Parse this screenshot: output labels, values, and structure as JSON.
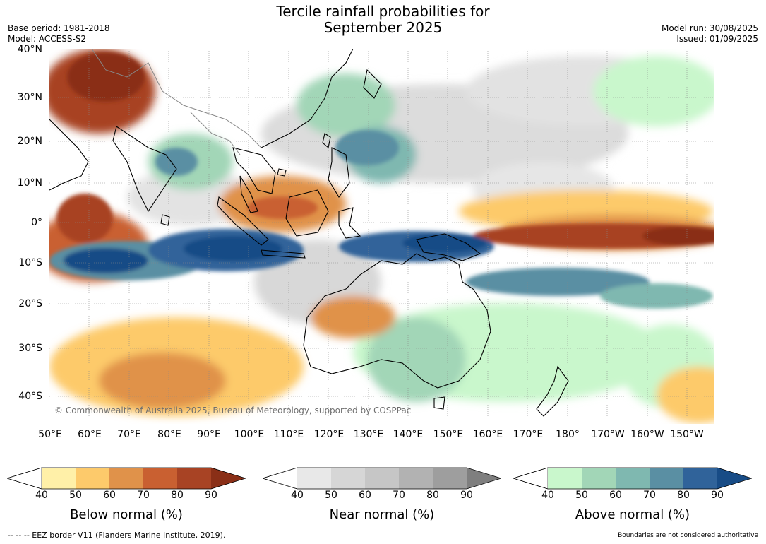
{
  "title": {
    "line1": "Tercile rainfall probabilities for",
    "line2": "September 2025"
  },
  "meta": {
    "base_period": "Base period: 1981-2018",
    "model": "Model: ACCESS-S2",
    "model_run": "Model run: 30/08/2025",
    "issued": "Issued: 01/09/2025"
  },
  "map": {
    "lat_labels": [
      "40°N",
      "30°N",
      "20°N",
      "10°N",
      "0°",
      "10°S",
      "20°S",
      "30°S",
      "40°S"
    ],
    "lon_labels": [
      "50°E",
      "60°E",
      "70°E",
      "80°E",
      "90°E",
      "100°E",
      "110°E",
      "120°E",
      "130°E",
      "140°E",
      "150°E",
      "160°E",
      "170°E",
      "180°",
      "170°W",
      "160°W",
      "150°W"
    ],
    "copyright": "© Commonwealth of Australia 2025, Bureau of Meteorology, supported by COSPPac"
  },
  "colorbars": [
    {
      "title": "Below normal (%)",
      "ticks": [
        "40",
        "50",
        "60",
        "70",
        "80",
        "90"
      ],
      "colors": [
        "#fff0a8",
        "#fdca6b",
        "#e0924a",
        "#c96031",
        "#a84324",
        "#8a2f17"
      ]
    },
    {
      "title": "Near normal (%)",
      "ticks": [
        "40",
        "50",
        "60",
        "70",
        "80",
        "90"
      ],
      "colors": [
        "#e8e8e8",
        "#d6d6d6",
        "#c6c6c6",
        "#b2b2b2",
        "#9e9e9e",
        "#7f7f7f"
      ]
    },
    {
      "title": "Above normal (%)",
      "ticks": [
        "40",
        "50",
        "60",
        "70",
        "80",
        "90"
      ],
      "colors": [
        "#c9f7cc",
        "#a2d6b7",
        "#7fb8b0",
        "#5a8fa3",
        "#30639a",
        "#184c86"
      ]
    }
  ],
  "footer": {
    "left": "--  --  -- EEZ border V11 (Flanders Marine Institute, 2019).",
    "right": "Boundaries are not considered authoritative"
  }
}
